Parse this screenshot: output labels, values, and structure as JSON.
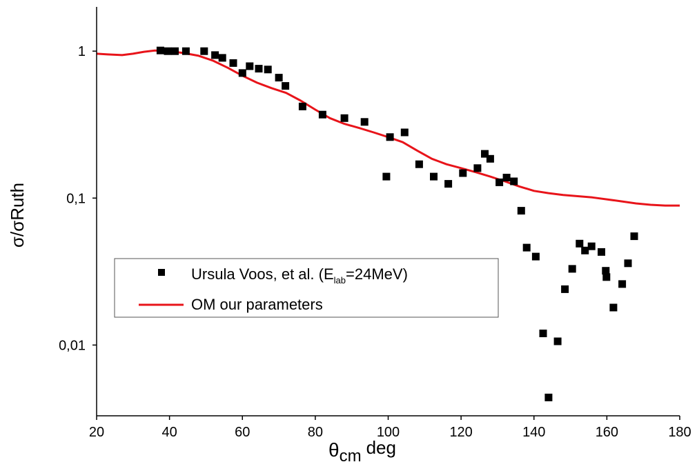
{
  "chart_data": {
    "type": "scatter",
    "title": "",
    "x_axis": {
      "label_main": "θ",
      "label_sub": "cm",
      "label_unit": "deg",
      "range": [
        20,
        180
      ],
      "ticks": [
        20,
        40,
        60,
        80,
        100,
        120,
        140,
        160,
        180
      ],
      "tick_labels": [
        "20",
        "40",
        "60",
        "80",
        "100",
        "120",
        "140",
        "160",
        "180"
      ]
    },
    "y_axis": {
      "label": "σ/σRuth",
      "scale": "log",
      "range": [
        0.0033,
        2.0
      ],
      "ticks": [
        0.01,
        0.1,
        1
      ],
      "tick_labels": [
        "0,01",
        "0,1",
        "1"
      ]
    },
    "grid": false,
    "legend": {
      "position": "center-left",
      "entries": [
        {
          "label_prefix": "Ursula Voos, et al. (E",
          "label_sub": "lab",
          "label_suffix": "=24MeV)",
          "marker": "square"
        },
        {
          "label": "OM our parameters",
          "marker": "line"
        }
      ]
    },
    "series": [
      {
        "name": "Ursula Voos, et al. (Elab=24MeV)",
        "kind": "scatter",
        "color": "#000000",
        "points": [
          [
            37.5,
            1.01
          ],
          [
            39.5,
            1.0
          ],
          [
            41.5,
            1.0
          ],
          [
            44.5,
            1.0
          ],
          [
            49.5,
            1.0
          ],
          [
            52.5,
            0.94
          ],
          [
            54.5,
            0.9
          ],
          [
            57.5,
            0.83
          ],
          [
            60.0,
            0.71
          ],
          [
            62.0,
            0.79
          ],
          [
            64.5,
            0.76
          ],
          [
            67.0,
            0.75
          ],
          [
            70.0,
            0.66
          ],
          [
            71.8,
            0.58
          ],
          [
            76.5,
            0.42
          ],
          [
            82.0,
            0.37
          ],
          [
            88.0,
            0.35
          ],
          [
            93.5,
            0.33
          ],
          [
            99.5,
            0.14
          ],
          [
            100.5,
            0.26
          ],
          [
            104.5,
            0.28
          ],
          [
            108.5,
            0.17
          ],
          [
            112.5,
            0.14
          ],
          [
            116.5,
            0.125
          ],
          [
            120.5,
            0.148
          ],
          [
            124.5,
            0.16
          ],
          [
            126.5,
            0.2
          ],
          [
            128.0,
            0.185
          ],
          [
            130.5,
            0.128
          ],
          [
            132.5,
            0.138
          ],
          [
            134.5,
            0.13
          ],
          [
            136.5,
            0.082
          ],
          [
            138.0,
            0.046
          ],
          [
            140.5,
            0.04
          ],
          [
            142.5,
            0.012
          ],
          [
            144.0,
            0.0044
          ],
          [
            146.5,
            0.0106
          ],
          [
            148.5,
            0.024
          ],
          [
            150.5,
            0.033
          ],
          [
            152.5,
            0.049
          ],
          [
            154.0,
            0.044
          ],
          [
            155.8,
            0.047
          ],
          [
            158.5,
            0.043
          ],
          [
            159.7,
            0.032
          ],
          [
            159.9,
            0.029
          ],
          [
            161.8,
            0.018
          ],
          [
            164.2,
            0.026
          ],
          [
            165.8,
            0.036
          ],
          [
            167.5,
            0.055
          ]
        ]
      },
      {
        "name": "OM our parameters",
        "kind": "line",
        "color": "#e8141a",
        "points": [
          [
            20,
            0.96
          ],
          [
            23,
            0.95
          ],
          [
            27,
            0.94
          ],
          [
            30,
            0.96
          ],
          [
            33,
            0.99
          ],
          [
            36,
            1.01
          ],
          [
            40,
            1.0
          ],
          [
            44,
            0.97
          ],
          [
            48,
            0.93
          ],
          [
            52,
            0.86
          ],
          [
            56,
            0.77
          ],
          [
            60,
            0.68
          ],
          [
            64,
            0.61
          ],
          [
            68,
            0.56
          ],
          [
            72,
            0.52
          ],
          [
            76,
            0.46
          ],
          [
            80,
            0.4
          ],
          [
            84,
            0.35
          ],
          [
            88,
            0.32
          ],
          [
            92,
            0.3
          ],
          [
            96,
            0.28
          ],
          [
            100,
            0.26
          ],
          [
            104,
            0.24
          ],
          [
            108,
            0.21
          ],
          [
            112,
            0.185
          ],
          [
            116,
            0.17
          ],
          [
            120,
            0.16
          ],
          [
            124,
            0.15
          ],
          [
            128,
            0.14
          ],
          [
            132,
            0.13
          ],
          [
            136,
            0.12
          ],
          [
            140,
            0.112
          ],
          [
            144,
            0.108
          ],
          [
            148,
            0.105
          ],
          [
            152,
            0.103
          ],
          [
            156,
            0.101
          ],
          [
            160,
            0.098
          ],
          [
            164,
            0.095
          ],
          [
            168,
            0.092
          ],
          [
            172,
            0.09
          ],
          [
            176,
            0.089
          ],
          [
            180,
            0.089
          ]
        ]
      }
    ]
  }
}
